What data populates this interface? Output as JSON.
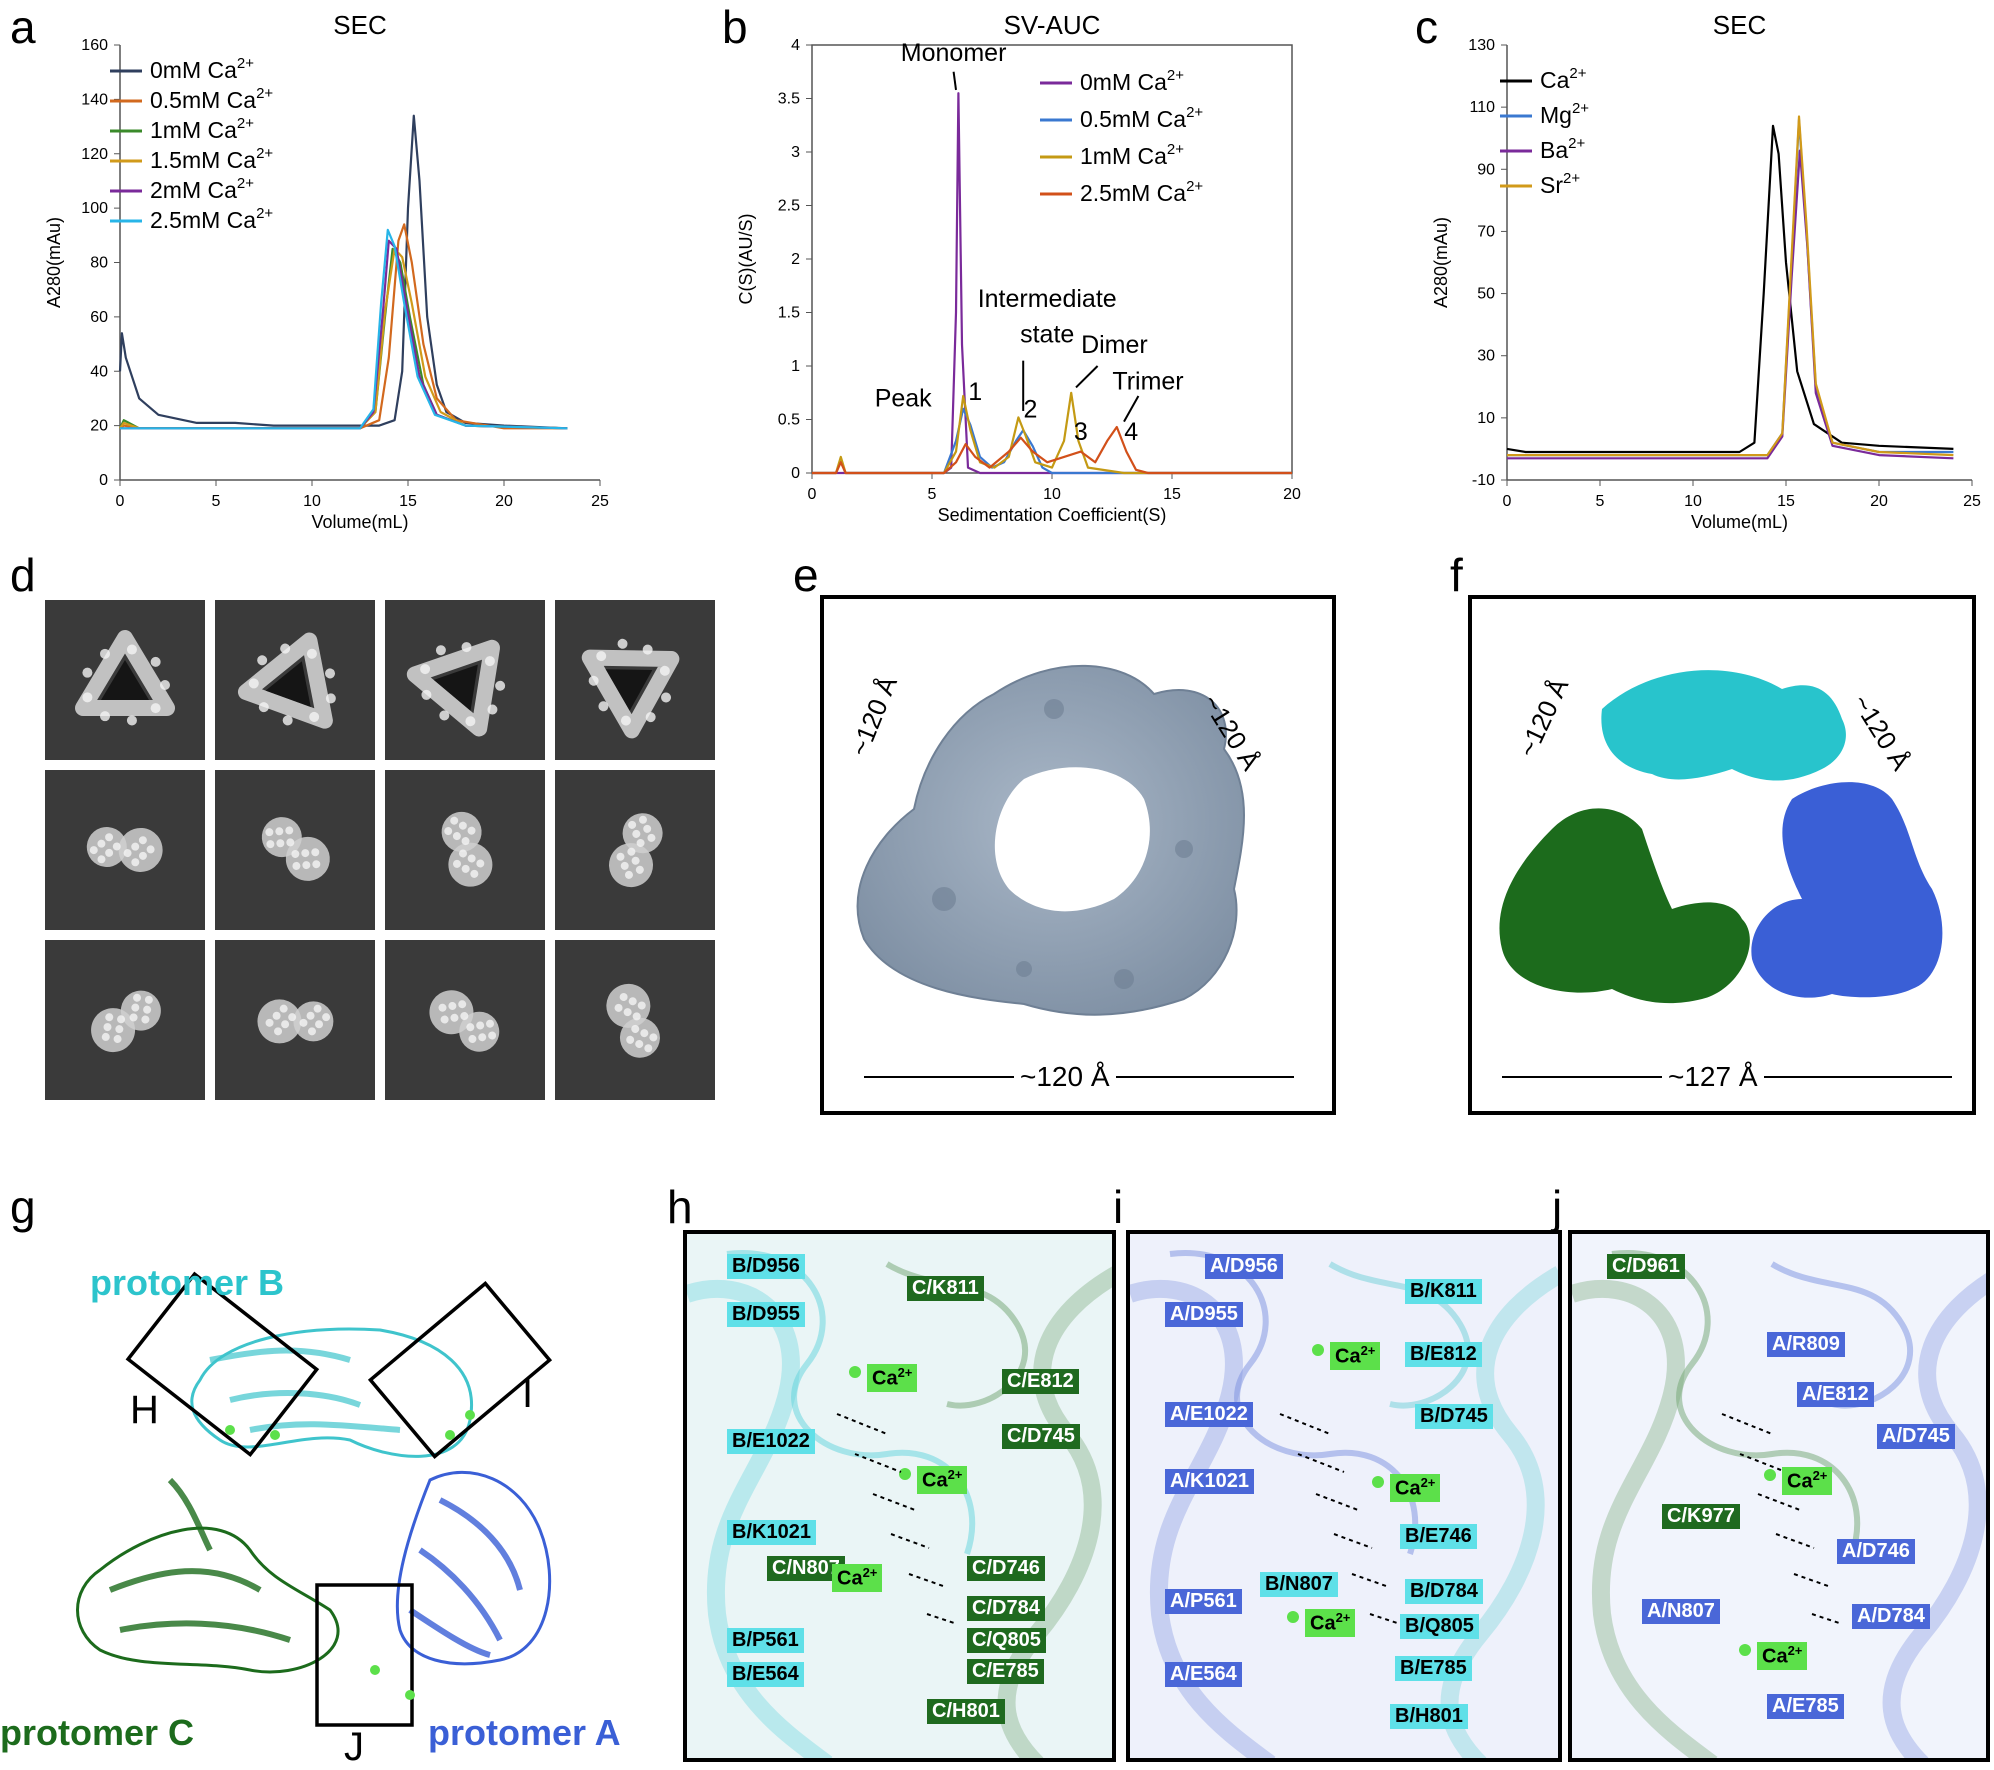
{
  "panels": {
    "a": "a",
    "b": "b",
    "c": "c",
    "d": "d",
    "e": "e",
    "f": "f",
    "g": "g",
    "h": "h",
    "i": "i",
    "j": "j"
  },
  "chart_data": [
    {
      "type": "line",
      "panel": "a",
      "title": "SEC",
      "xlabel": "Volume(mL)",
      "ylabel": "A280(mAu)",
      "xlim": [
        0,
        25
      ],
      "ylim": [
        0,
        160
      ],
      "xticks": [
        "0",
        "5",
        "10",
        "15",
        "20",
        "25"
      ],
      "yticks": [
        "0",
        "20",
        "40",
        "60",
        "80",
        "100",
        "120",
        "140",
        "160"
      ],
      "legend_position": "top-left",
      "series": [
        {
          "name": "0mM Ca",
          "sup": "2+",
          "color": "#2f3f5e",
          "x": [
            0,
            0.1,
            0.3,
            1,
            2,
            4,
            6,
            8,
            10,
            12,
            13.5,
            14.3,
            14.7,
            15.0,
            15.3,
            15.6,
            16.0,
            16.5,
            17,
            18,
            20,
            23.3
          ],
          "y": [
            40,
            54,
            45,
            30,
            24,
            21,
            21,
            20,
            20,
            20,
            20,
            22,
            40,
            100,
            134,
            110,
            60,
            35,
            25,
            21,
            20,
            19
          ]
        },
        {
          "name": "0.5mM Ca",
          "sup": "2+",
          "color": "#d2691e",
          "x": [
            0,
            0.2,
            1,
            5,
            10,
            12.5,
            13.5,
            14.0,
            14.5,
            14.8,
            15.2,
            15.8,
            16.5,
            17.5,
            20,
            23.3
          ],
          "y": [
            19,
            20,
            19,
            19,
            19,
            19,
            22,
            45,
            88,
            94,
            80,
            50,
            30,
            22,
            19,
            19
          ]
        },
        {
          "name": "1mM Ca",
          "sup": "2+",
          "color": "#3a8a2a",
          "x": [
            0,
            0.2,
            1,
            5,
            10,
            12.5,
            13.3,
            13.8,
            14.2,
            14.6,
            15.1,
            15.8,
            16.5,
            18,
            23.3
          ],
          "y": [
            19,
            22,
            19,
            19,
            19,
            19,
            25,
            60,
            85,
            80,
            60,
            35,
            24,
            20,
            19
          ]
        },
        {
          "name": "1.5mM Ca",
          "sup": "2+",
          "color": "#d19a1a",
          "x": [
            0,
            0.2,
            1,
            5,
            10,
            12.5,
            13.3,
            13.8,
            14.3,
            14.7,
            15.2,
            15.9,
            16.7,
            18,
            23.3
          ],
          "y": [
            19,
            21,
            19,
            19,
            19,
            19,
            25,
            62,
            85,
            82,
            65,
            38,
            25,
            20,
            19
          ]
        },
        {
          "name": "2mM Ca",
          "sup": "2+",
          "color": "#7a2a9a",
          "x": [
            0,
            1,
            5,
            10,
            12.5,
            13.2,
            13.7,
            14.0,
            14.4,
            14.9,
            15.6,
            16.5,
            18,
            23.3
          ],
          "y": [
            19,
            19,
            19,
            19,
            19,
            25,
            62,
            88,
            85,
            65,
            38,
            24,
            20,
            19
          ]
        },
        {
          "name": "2.5mM Ca",
          "sup": "2+",
          "color": "#27b5e8",
          "x": [
            0,
            1,
            5,
            10,
            12.5,
            13.2,
            13.6,
            13.95,
            14.3,
            14.8,
            15.5,
            16.4,
            18,
            23.3
          ],
          "y": [
            19,
            19,
            19,
            19,
            19,
            26,
            65,
            92,
            86,
            65,
            38,
            24,
            20,
            19
          ]
        }
      ]
    },
    {
      "type": "line",
      "panel": "b",
      "title": "SV-AUC",
      "xlabel": "Sedimentation Coefficient(S)",
      "ylabel": "C(S)(AU/S)",
      "xlim": [
        0,
        20
      ],
      "ylim": [
        0,
        4
      ],
      "xticks": [
        "0",
        "5",
        "10",
        "15",
        "20"
      ],
      "yticks": [
        "0",
        "0.5",
        "1",
        "1.5",
        "2",
        "2.5",
        "3",
        "3.5",
        "4"
      ],
      "legend_position": "top-right",
      "annotations": [
        {
          "text": "Monomer",
          "x": 5.9,
          "y": 3.85
        },
        {
          "text": "Intermediate",
          "x": 9.8,
          "y": 1.55
        },
        {
          "text": "state",
          "x": 9.8,
          "y": 1.22
        },
        {
          "text": "Dimer",
          "x": 12.6,
          "y": 1.12
        },
        {
          "text": "Trimer",
          "x": 14.0,
          "y": 0.78
        },
        {
          "text": "Peak",
          "x": 3.8,
          "y": 0.62
        },
        {
          "text": "1",
          "x": 6.8,
          "y": 0.68
        },
        {
          "text": "2",
          "x": 9.1,
          "y": 0.52
        },
        {
          "text": "3",
          "x": 11.2,
          "y": 0.31
        },
        {
          "text": "4",
          "x": 13.3,
          "y": 0.31
        }
      ],
      "series": [
        {
          "name": "0mM Ca",
          "sup": "2+",
          "color": "#7a2a9a",
          "x": [
            0,
            5.5,
            5.8,
            6.0,
            6.1,
            6.25,
            6.5,
            7,
            10,
            20
          ],
          "y": [
            0,
            0,
            0.05,
            1.5,
            3.55,
            1.2,
            0.05,
            0,
            0,
            0
          ]
        },
        {
          "name": "0.5mM Ca",
          "sup": "2+",
          "color": "#3a78d0",
          "x": [
            0,
            1.0,
            1.2,
            1.4,
            2,
            5.5,
            6.0,
            6.3,
            6.6,
            7.0,
            7.5,
            8.0,
            8.5,
            8.8,
            9.2,
            9.6,
            10,
            11,
            20
          ],
          "y": [
            0,
            0,
            0.12,
            0,
            0,
            0,
            0.3,
            0.6,
            0.45,
            0.15,
            0.05,
            0.1,
            0.3,
            0.4,
            0.25,
            0.05,
            0,
            0,
            0
          ]
        },
        {
          "name": "1mM Ca",
          "sup": "2+",
          "color": "#c49a14",
          "x": [
            0,
            1.0,
            1.2,
            1.4,
            2,
            5.5,
            6.0,
            6.3,
            6.6,
            7.0,
            7.6,
            8.2,
            8.6,
            8.9,
            9.3,
            10,
            10.5,
            10.8,
            11.1,
            11.5,
            13,
            20
          ],
          "y": [
            0,
            0,
            0.15,
            0,
            0,
            0,
            0.2,
            0.72,
            0.4,
            0.1,
            0.05,
            0.15,
            0.52,
            0.35,
            0.1,
            0.05,
            0.3,
            0.75,
            0.3,
            0.05,
            0,
            0
          ]
        },
        {
          "name": "2.5mM Ca",
          "sup": "2+",
          "color": "#d2501a",
          "x": [
            0,
            1.0,
            1.2,
            1.4,
            2,
            5.5,
            6.0,
            6.4,
            6.8,
            7.4,
            8.2,
            8.7,
            9.2,
            9.8,
            10.5,
            11.2,
            11.8,
            12.3,
            12.7,
            13.1,
            13.5,
            14,
            20
          ],
          "y": [
            0,
            0,
            0.1,
            0,
            0,
            0,
            0.1,
            0.27,
            0.15,
            0.05,
            0.2,
            0.33,
            0.2,
            0.1,
            0.15,
            0.2,
            0.1,
            0.3,
            0.43,
            0.2,
            0.03,
            0,
            0
          ]
        }
      ]
    },
    {
      "type": "line",
      "panel": "c",
      "title": "SEC",
      "xlabel": "Volume(mL)",
      "ylabel": "A280(mAu)",
      "xlim": [
        0,
        25
      ],
      "ylim": [
        -10,
        130
      ],
      "xticks": [
        "0",
        "5",
        "10",
        "15",
        "20",
        "25"
      ],
      "yticks": [
        "-10",
        "10",
        "30",
        "50",
        "70",
        "90",
        "110",
        "130"
      ],
      "legend_position": "top-left",
      "series": [
        {
          "name": "Ca",
          "sup": "2+",
          "color": "#000000",
          "x": [
            0,
            1,
            5,
            10,
            12.5,
            13.3,
            13.8,
            14.3,
            14.6,
            15.0,
            15.6,
            16.5,
            18,
            20,
            24
          ],
          "y": [
            0,
            -1,
            -1,
            -1,
            -1,
            2,
            50,
            104,
            95,
            60,
            25,
            8,
            2,
            1,
            0
          ]
        },
        {
          "name": "Mg",
          "sup": "2+",
          "color": "#3a78d0",
          "x": [
            0,
            1,
            5,
            10,
            14,
            14.8,
            15.3,
            15.7,
            16.1,
            16.6,
            17.5,
            20,
            24
          ],
          "y": [
            -2,
            -2,
            -2,
            -2,
            -2,
            5,
            60,
            106,
            70,
            20,
            2,
            -1,
            -1
          ]
        },
        {
          "name": "Ba",
          "sup": "2+",
          "color": "#7a2a9a",
          "x": [
            0,
            1,
            5,
            10,
            14,
            14.8,
            15.3,
            15.75,
            16.15,
            16.6,
            17.5,
            20,
            24
          ],
          "y": [
            -3,
            -3,
            -3,
            -3,
            -3,
            4,
            55,
            96,
            65,
            18,
            1,
            -2,
            -3
          ]
        },
        {
          "name": "Sr",
          "sup": "2+",
          "color": "#d19a1a",
          "x": [
            0,
            1,
            5,
            10,
            14,
            14.8,
            15.3,
            15.7,
            16.1,
            16.6,
            17.5,
            20,
            24
          ],
          "y": [
            -2,
            -2,
            -2,
            -2,
            -2,
            5,
            62,
            107,
            72,
            21,
            2,
            -1,
            -2
          ]
        }
      ]
    }
  ],
  "e": {
    "side_left": "~120 Å",
    "side_right": "~120 Å",
    "bottom": "~120 Å"
  },
  "f": {
    "side_left": "~120 Å",
    "side_right": "~120 Å",
    "bottom": "~127 Å",
    "colors": {
      "B": "#28c4cc",
      "C": "#1c6b1c",
      "A": "#3a5fd6"
    }
  },
  "g": {
    "protomer_b": "protomer B",
    "protomer_c": "protomer C",
    "protomer_a": "protomer A",
    "box_h": "H",
    "box_i": "I",
    "box_j": "J"
  },
  "h_labels": {
    "l1": "B/D956",
    "l2": "B/D955",
    "l3": "C/K811",
    "l4": "Ca",
    "l5": "C/E812",
    "l6": "C/D745",
    "l7": "B/E1022",
    "l8": "Ca",
    "l9": "B/K1021",
    "l10": "C/N807",
    "l11": "C/D746",
    "l12": "Ca",
    "l13": "C/D784",
    "l14": "C/Q805",
    "l15": "B/P561",
    "l16": "C/E785",
    "l17": "B/E564",
    "l18": "C/H801"
  },
  "i_labels": {
    "l1": "A/D956",
    "l2": "A/D955",
    "l3": "B/K811",
    "l4": "Ca",
    "l5": "B/E812",
    "l6": "A/E1022",
    "l7": "B/D745",
    "l8": "A/K1021",
    "l9": "Ca",
    "l10": "B/E746",
    "l11": "B/N807",
    "l12": "A/P561",
    "l13": "B/D784",
    "l14": "Ca",
    "l15": "B/Q805",
    "l16": "B/E785",
    "l17": "A/E564",
    "l18": "B/H801"
  },
  "j_labels": {
    "l1": "C/D961",
    "l2": "A/R809",
    "l3": "A/E812",
    "l4": "A/D745",
    "l5": "Ca",
    "l6": "C/K977",
    "l7": "A/D746",
    "l8": "A/N807",
    "l9": "Ca",
    "l10": "A/D784",
    "l11": "A/E785"
  },
  "ca_sup": "2+"
}
